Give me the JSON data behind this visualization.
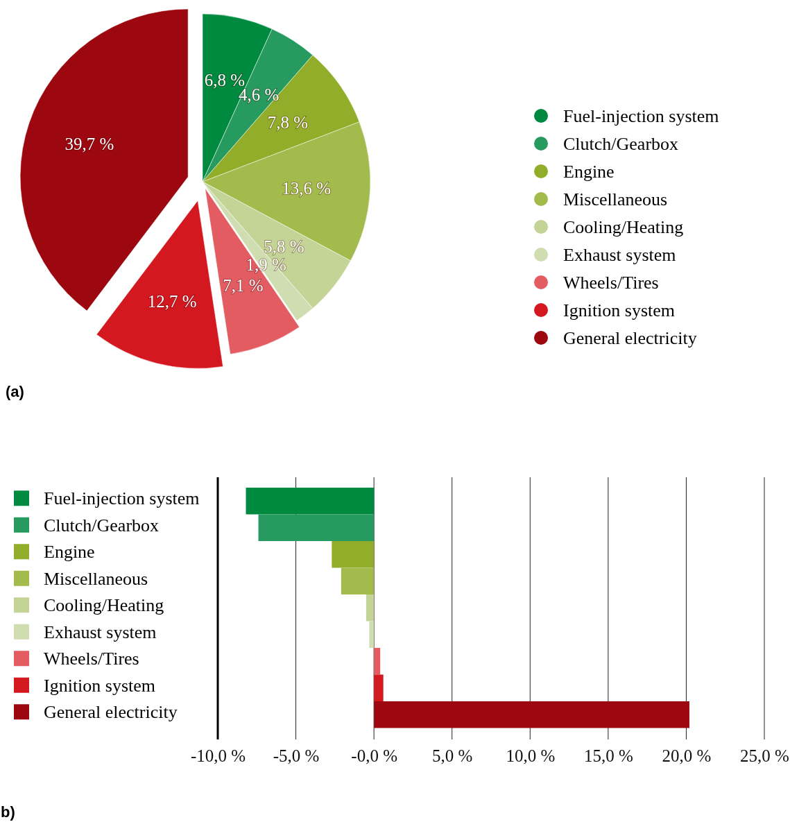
{
  "chart_data": [
    {
      "type": "pie",
      "categories": [
        "Fuel-injection system",
        "Clutch/Gearbox",
        "Engine",
        "Miscellaneous",
        "Cooling/Heating",
        "Exhaust system",
        "Wheels/Tires",
        "Ignition system",
        "General electricity"
      ],
      "values": [
        6.8,
        4.6,
        7.8,
        13.6,
        5.8,
        1.9,
        7.1,
        12.7,
        39.7
      ],
      "colors": [
        "#008a40",
        "#279b5f",
        "#91ad2a",
        "#a3bb4d",
        "#c4d497",
        "#d0ddb0",
        "#e25c62",
        "#d41820",
        "#9c0710"
      ],
      "value_labels": [
        "6,8 %",
        "4,6 %",
        "7,8 %",
        "13,6 %",
        "5,8 %",
        "1,9 %",
        "7,1 %",
        "12,7 %",
        "39,7 %"
      ],
      "legend": "right",
      "annotations": [
        "(a)"
      ]
    },
    {
      "type": "bar",
      "orientation": "horizontal",
      "categories": [
        "Fuel-injection system",
        "Clutch/Gearbox",
        "Engine",
        "Miscellaneous",
        "Cooling/Heating",
        "Exhaust system",
        "Wheels/Tires",
        "Ignition system",
        "General electricity"
      ],
      "values": [
        -8.2,
        -7.4,
        -2.7,
        -2.1,
        -0.5,
        -0.3,
        0.4,
        0.6,
        20.2
      ],
      "colors": [
        "#008a40",
        "#279b5f",
        "#91ad2a",
        "#a3bb4d",
        "#c4d497",
        "#d0ddb0",
        "#e25c62",
        "#d41820",
        "#9c0710"
      ],
      "xlim": [
        -10,
        25
      ],
      "xticks": [
        {
          "value": -10,
          "label": "-10,0 %"
        },
        {
          "value": -5,
          "label": "-5,0 %"
        },
        {
          "value": 0,
          "label": "-0,0 %"
        },
        {
          "value": 5,
          "label": "5,0 %"
        },
        {
          "value": 10,
          "label": "10,0 %"
        },
        {
          "value": 15,
          "label": "15,0 %"
        },
        {
          "value": 20,
          "label": "20,0 %"
        },
        {
          "value": 25,
          "label": "25,0 %"
        }
      ],
      "grid": "x",
      "annotations": [
        "b)"
      ]
    }
  ]
}
